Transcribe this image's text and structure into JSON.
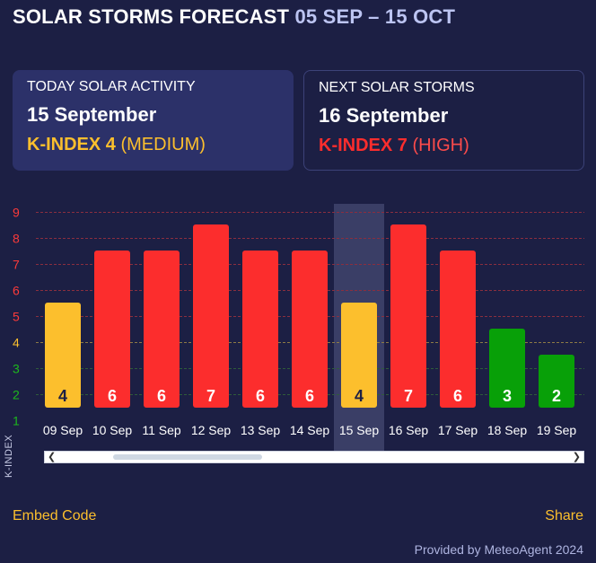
{
  "header": {
    "title": "SOLAR STORMS FORECAST",
    "range": "05 SEP – 15 OCT"
  },
  "today": {
    "label": "TODAY SOLAR ACTIVITY",
    "date": "15 September",
    "kindex": "K-INDEX 4",
    "level": "(MEDIUM)"
  },
  "next": {
    "label": "NEXT SOLAR STORMS",
    "date": "16 September",
    "kindex": "K-INDEX 7",
    "level": "(HIGH)"
  },
  "chart_data": {
    "type": "bar",
    "ylabel": "K-INDEX",
    "ylim": [
      1,
      9
    ],
    "yticks": [
      "1",
      "2",
      "3",
      "4",
      "5",
      "6",
      "7",
      "8",
      "9"
    ],
    "highlight_category": "15 Sep",
    "categories": [
      "09 Sep",
      "10 Sep",
      "11 Sep",
      "12 Sep",
      "13 Sep",
      "14 Sep",
      "15 Sep",
      "16 Sep",
      "17 Sep",
      "18 Sep",
      "19 Sep"
    ],
    "values": [
      4,
      6,
      6,
      7,
      6,
      6,
      4,
      7,
      6,
      3,
      2
    ],
    "bar_heights": [
      4.05,
      6.05,
      6.05,
      7.05,
      6.05,
      6.05,
      4.05,
      7.05,
      6.05,
      3.05,
      2.05
    ],
    "colors": {
      "low": "#08a008",
      "medium": "#fcbf2d",
      "high": "#fc2d2d",
      "tick_low": "#1db81d",
      "tick_medium": "#fcbf2d",
      "tick_high": "#fc3a3a",
      "grid_high": "#8a2e3f",
      "grid_medium": "#8d7a45",
      "grid_low": "#2f5b3a",
      "highlight": "#3a3e66"
    }
  },
  "footer": {
    "embed": "Embed Code",
    "share": "Share",
    "credit": "Provided by MeteoAgent 2024"
  }
}
